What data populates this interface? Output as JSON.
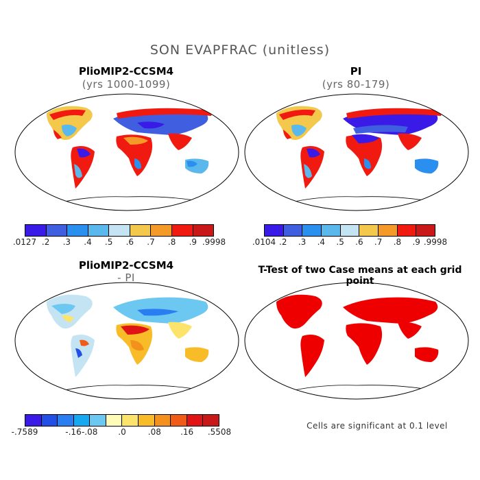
{
  "title": "SON EVAPFRAC (unitless)",
  "panels": {
    "top_left": {
      "title": "PlioMIP2-CCSM4",
      "subtitle": "(yrs 1000-1099)"
    },
    "top_right": {
      "title": "PI",
      "subtitle": "(yrs 80-179)"
    },
    "bottom_left": {
      "title": "PlioMIP2-CCSM4",
      "subtitle": "- PI"
    },
    "bottom_right": {
      "title": "T-Test of two Case means at each grid point",
      "note": "Cells are significant at 0.1 level"
    }
  },
  "colorbars": {
    "top_left": {
      "colors": [
        "#3a1ae6",
        "#3f5fe0",
        "#2b8ff0",
        "#5bb8ec",
        "#c4e4f4",
        "#f4c84a",
        "#f49a28",
        "#f01a10",
        "#c81818"
      ],
      "labels": [
        ".0127",
        ".2",
        ".3",
        ".4",
        ".5",
        ".6",
        ".7",
        ".8",
        ".9",
        ".9998"
      ]
    },
    "top_right": {
      "colors": [
        "#3a1ae6",
        "#3f5fe0",
        "#2b8ff0",
        "#5bb8ec",
        "#c4e4f4",
        "#f4c84a",
        "#f49a28",
        "#f01a10",
        "#c81818"
      ],
      "labels": [
        ".0104",
        ".2",
        ".3",
        ".4",
        ".5",
        ".6",
        ".7",
        ".8",
        ".9",
        ".9998"
      ]
    },
    "bottom_left": {
      "colors": [
        "#3a1ae6",
        "#2250e6",
        "#2b7ef2",
        "#18a8f0",
        "#6cc8f0",
        "#fffcb8",
        "#fce46c",
        "#f8bc28",
        "#f4901c",
        "#f05c18",
        "#e01414",
        "#c81818"
      ],
      "labels": [
        "-.7589",
        "-.16",
        "-.08",
        ".0",
        ".08",
        ".16",
        ".5508"
      ],
      "label_boxes": [
        0,
        3,
        4,
        6,
        8,
        10,
        12
      ]
    },
    "significance_color": "#ee0000"
  }
}
